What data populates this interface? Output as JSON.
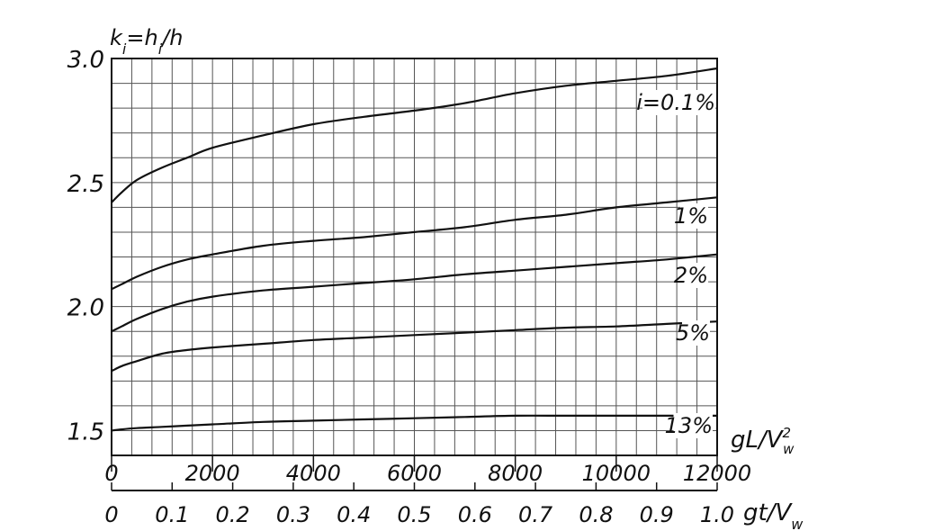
{
  "chart_data": {
    "type": "line",
    "ylabel": "k_i=h_i/h",
    "xlabel_top": "gL/V_w^2",
    "xlabel_bottom": "gt/V_w",
    "ylim": [
      1.4,
      3.0
    ],
    "yticks": [
      "1.5",
      "2.0",
      "2.5",
      "3.0"
    ],
    "xlim_top": [
      0,
      12000
    ],
    "xticks_top": [
      "0",
      "2000",
      "4000",
      "6000",
      "8000",
      "10000",
      "12000"
    ],
    "xlim_bottom": [
      0,
      1.0
    ],
    "xticks_bottom": [
      "0",
      "0.1",
      "0.2",
      "0.3",
      "0.4",
      "0.5",
      "0.6",
      "0.7",
      "0.8",
      "0.9",
      "1.0"
    ],
    "grid": true,
    "x": [
      0,
      200,
      500,
      1000,
      1500,
      2000,
      3000,
      4000,
      5000,
      6000,
      7000,
      8000,
      9000,
      10000,
      11000,
      12000
    ],
    "series": [
      {
        "name": "i=0.1%",
        "values": [
          2.42,
          2.46,
          2.51,
          2.56,
          2.6,
          2.64,
          2.69,
          2.735,
          2.765,
          2.79,
          2.82,
          2.86,
          2.89,
          2.91,
          2.93,
          2.96
        ]
      },
      {
        "name": "1%",
        "values": [
          2.07,
          2.09,
          2.12,
          2.16,
          2.19,
          2.21,
          2.245,
          2.265,
          2.28,
          2.3,
          2.32,
          2.35,
          2.37,
          2.4,
          2.42,
          2.44
        ]
      },
      {
        "name": "2%",
        "values": [
          1.9,
          1.92,
          1.95,
          1.99,
          2.02,
          2.04,
          2.065,
          2.08,
          2.095,
          2.11,
          2.13,
          2.145,
          2.16,
          2.175,
          2.19,
          2.21
        ]
      },
      {
        "name": "5%",
        "values": [
          1.74,
          1.76,
          1.78,
          1.81,
          1.825,
          1.835,
          1.85,
          1.865,
          1.875,
          1.885,
          1.895,
          1.905,
          1.915,
          1.92,
          1.93,
          1.94
        ]
      },
      {
        "name": "13%",
        "values": [
          1.5,
          1.505,
          1.51,
          1.515,
          1.52,
          1.525,
          1.535,
          1.54,
          1.545,
          1.55,
          1.555,
          1.56,
          1.56,
          1.56,
          1.56,
          1.56
        ]
      }
    ]
  }
}
